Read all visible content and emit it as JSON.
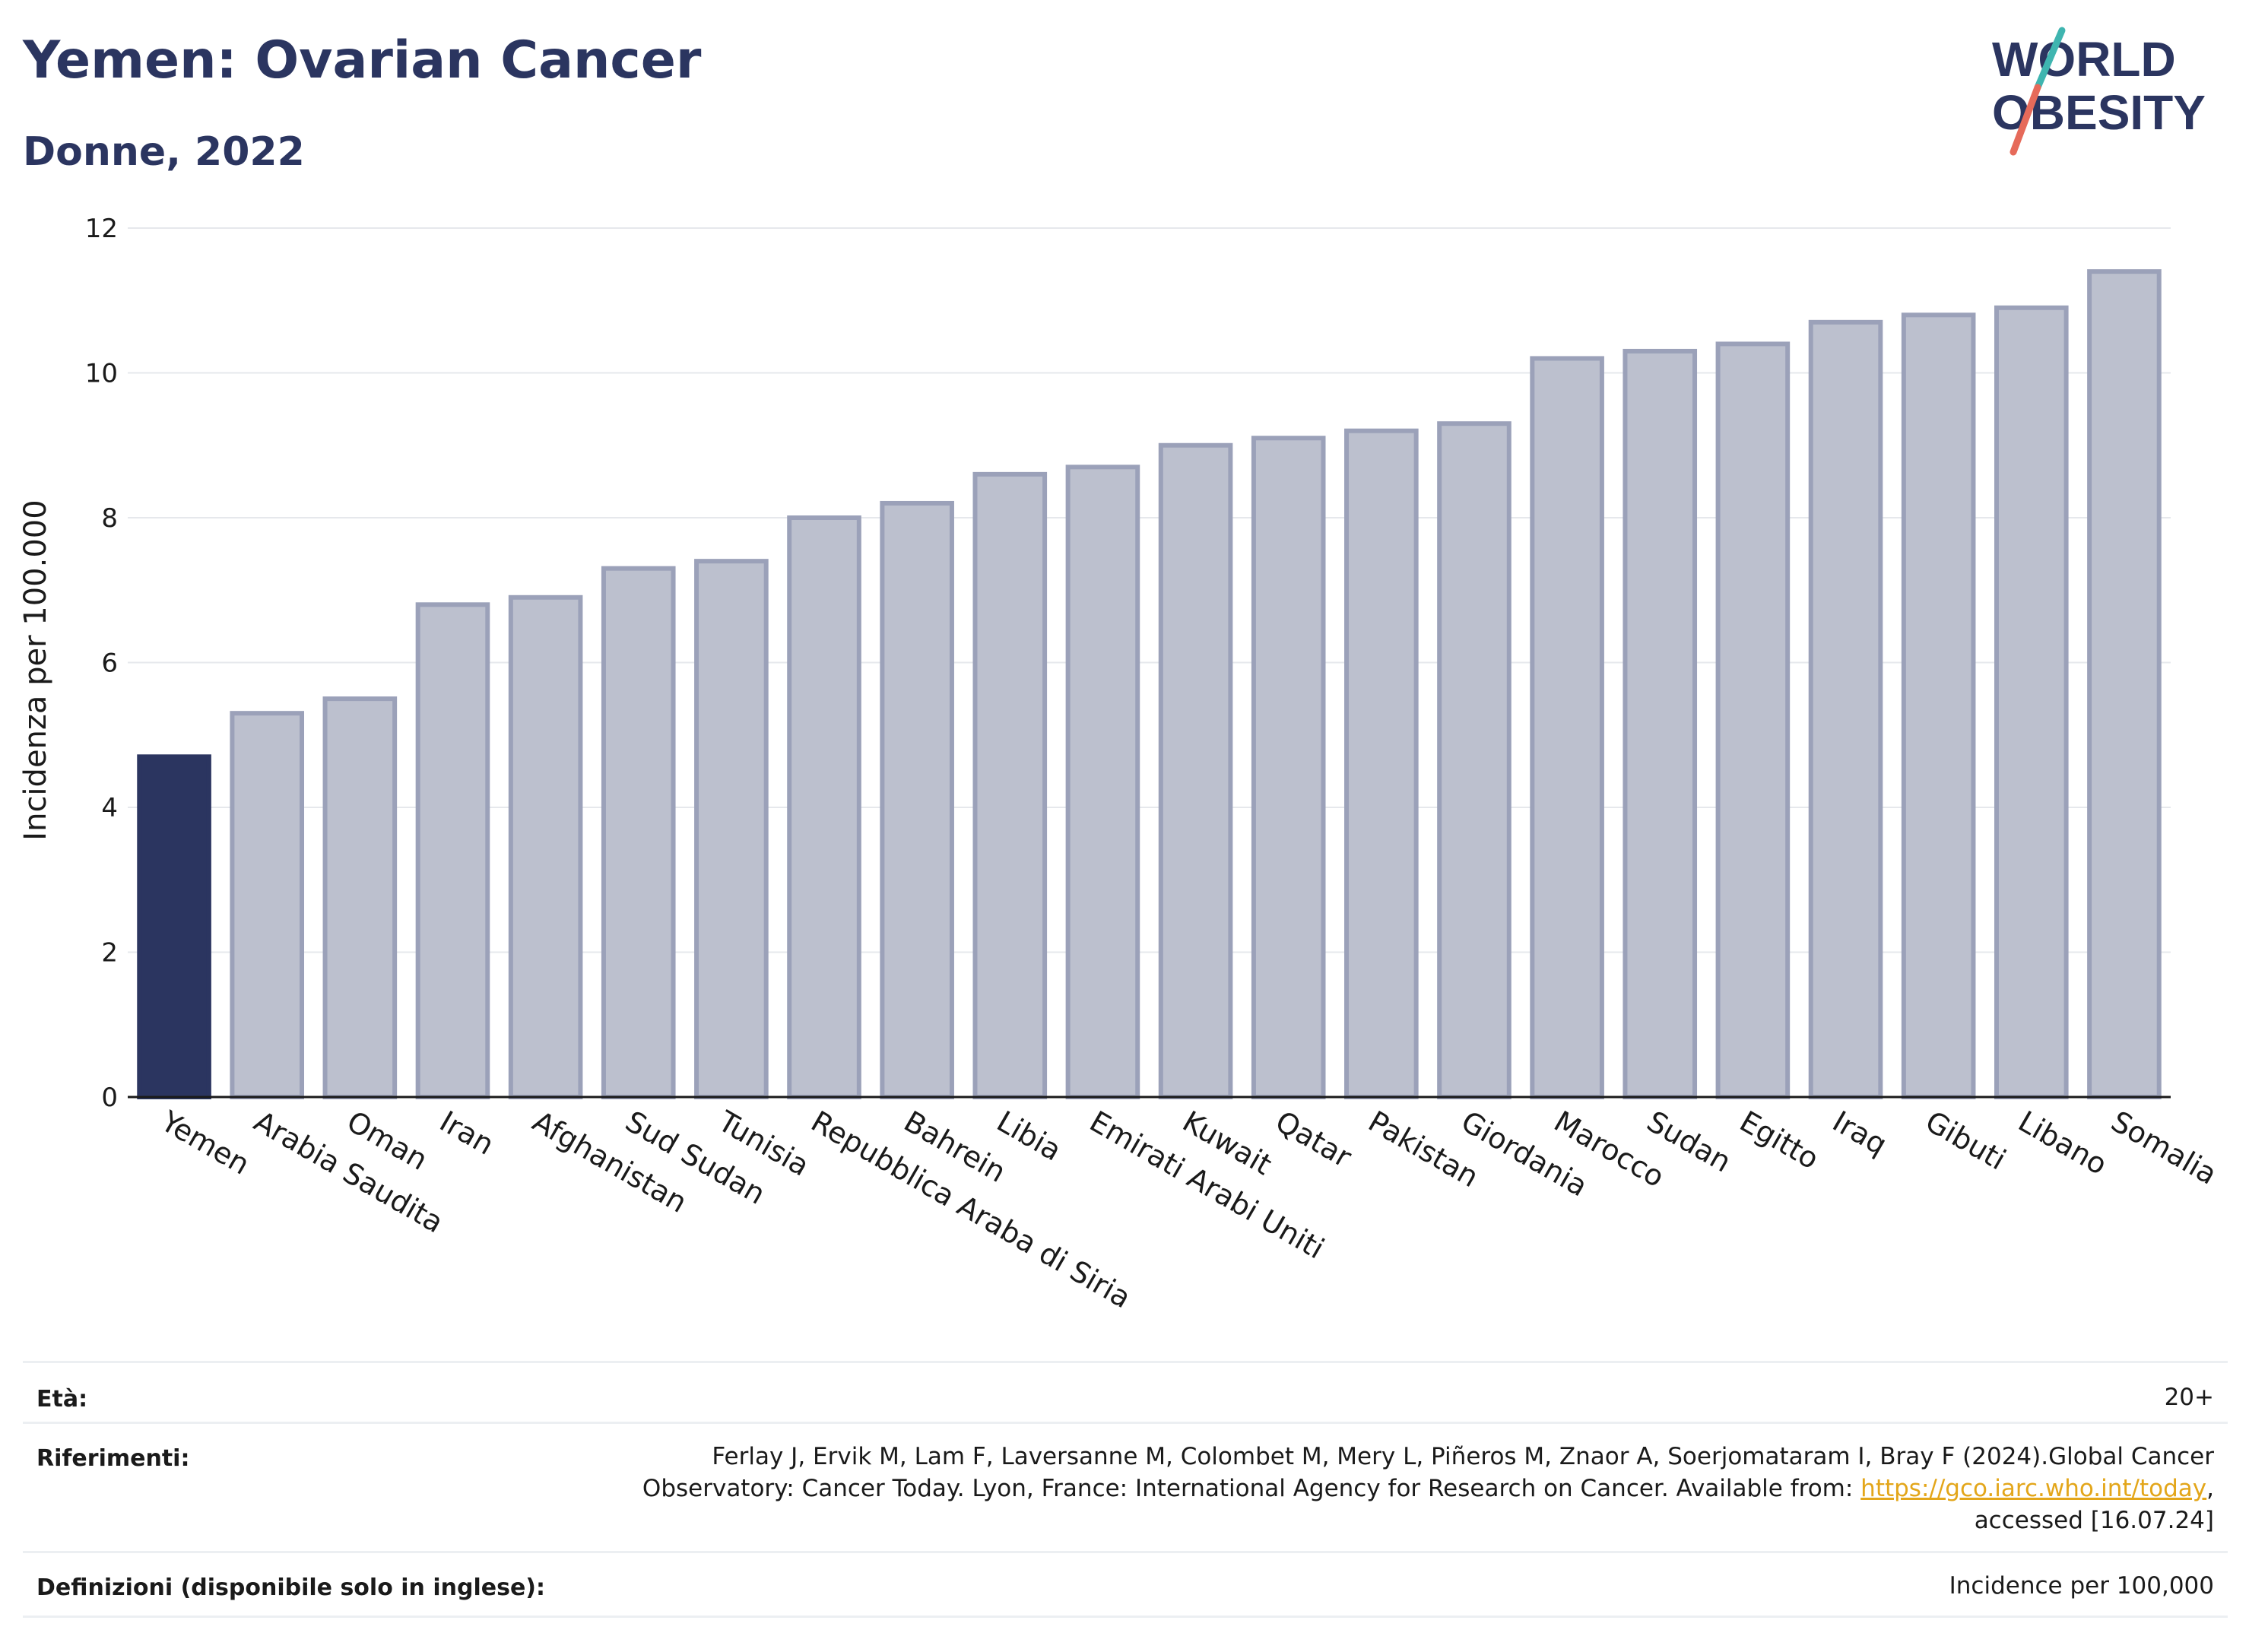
{
  "header": {
    "title": "Yemen: Ovarian Cancer",
    "subtitle": "Donne, 2022",
    "logo_line1": "WORLD",
    "logo_line2": "OBESITY"
  },
  "colors": {
    "highlight": "#2b3560",
    "bar": "#bcc0ce",
    "bar_stroke": "#9ba1b9",
    "title": "#2b3560",
    "link": "#e3a61a",
    "logo_teal": "#3fb5b0",
    "logo_coral": "#e66a5a"
  },
  "chart_data": {
    "type": "bar",
    "categories": [
      "Yemen",
      "Arabia Saudita",
      "Oman",
      "Iran",
      "Afghanistan",
      "Sud Sudan",
      "Tunisia",
      "Repubblica Araba di Siria",
      "Bahrein",
      "Libia",
      "Emirati Arabi Uniti",
      "Kuwait",
      "Qatar",
      "Pakistan",
      "Giordania",
      "Marocco",
      "Sudan",
      "Egitto",
      "Iraq",
      "Gibuti",
      "Libano",
      "Somalia"
    ],
    "values": [
      4.7,
      5.3,
      5.5,
      6.8,
      6.9,
      7.3,
      7.4,
      8.0,
      8.2,
      8.6,
      8.7,
      9.0,
      9.1,
      9.2,
      9.3,
      10.2,
      10.3,
      10.4,
      10.7,
      10.8,
      10.9,
      11.4
    ],
    "highlight": "Yemen",
    "ylabel": "Incidenza per 100.000",
    "ylim": [
      0,
      12
    ],
    "yticks": [
      0,
      2,
      4,
      6,
      8,
      10,
      12
    ],
    "grid": true
  },
  "footer": {
    "age_label": "Età:",
    "age_value": "20+",
    "refs_label": "Riferimenti:",
    "refs_line1": "Ferlay J, Ervik M, Lam F, Laversanne M, Colombet M, Mery L, Piñeros M, Znaor A, Soerjomataram I, Bray F (2024).Global Cancer",
    "refs_line2_pre": "Observatory: Cancer Today. Lyon, France: International Agency for Research on Cancer. Available from: ",
    "refs_link": "https://gco.iarc.who.int/today",
    "refs_line2_post": ",",
    "refs_line3": "accessed [16.07.24]",
    "defs_label": "Definizioni (disponibile solo in inglese):",
    "defs_value": "Incidence per 100,000"
  }
}
